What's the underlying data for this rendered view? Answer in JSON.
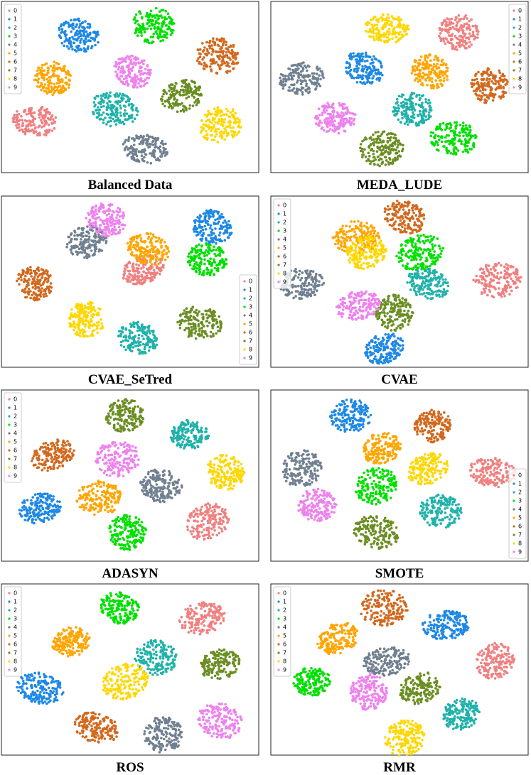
{
  "chart_data": [
    {
      "type": "scatter",
      "title": "Balanced Data",
      "legend": "upper left",
      "xlim": [
        0,
        100
      ],
      "ylim": [
        0,
        100
      ],
      "series": [
        {
          "name": "0",
          "color": "#f08080",
          "x": [
            13
          ],
          "values": [
            30
          ]
        },
        {
          "name": "1",
          "color": "#1e88e5",
          "x": [
            30
          ],
          "values": [
            80
          ]
        },
        {
          "name": "2",
          "color": "#20b2aa",
          "x": [
            44
          ],
          "values": [
            37
          ]
        },
        {
          "name": "3",
          "color": "#00e000",
          "x": [
            59
          ],
          "values": [
            86
          ]
        },
        {
          "name": "4",
          "color": "#708090",
          "x": [
            56
          ],
          "values": [
            14
          ]
        },
        {
          "name": "5",
          "color": "#ffa500",
          "x": [
            20
          ],
          "values": [
            55
          ]
        },
        {
          "name": "6",
          "color": "#d2691e",
          "x": [
            84
          ],
          "values": [
            68
          ]
        },
        {
          "name": "7",
          "color": "#6b8e23",
          "x": [
            70
          ],
          "values": [
            45
          ]
        },
        {
          "name": "8",
          "color": "#ffd700",
          "x": [
            85
          ],
          "values": [
            28
          ]
        },
        {
          "name": "9",
          "color": "#ee82ee",
          "x": [
            51
          ],
          "values": [
            59
          ]
        }
      ]
    },
    {
      "type": "scatter",
      "title": "MEDA_LUDE",
      "legend": "upper right",
      "xlim": [
        0,
        100
      ],
      "ylim": [
        0,
        100
      ],
      "series": [
        {
          "name": "0",
          "color": "#f08080",
          "x": [
            73
          ],
          "values": [
            82
          ]
        },
        {
          "name": "1",
          "color": "#1e88e5",
          "x": [
            36
          ],
          "values": [
            61
          ]
        },
        {
          "name": "2",
          "color": "#20b2aa",
          "x": [
            55
          ],
          "values": [
            37
          ]
        },
        {
          "name": "3",
          "color": "#00e000",
          "x": [
            71
          ],
          "values": [
            20
          ]
        },
        {
          "name": "4",
          "color": "#708090",
          "x": [
            12
          ],
          "values": [
            55
          ]
        },
        {
          "name": "5",
          "color": "#ffa500",
          "x": [
            62
          ],
          "values": [
            59
          ]
        },
        {
          "name": "6",
          "color": "#d2691e",
          "x": [
            85
          ],
          "values": [
            51
          ]
        },
        {
          "name": "7",
          "color": "#6b8e23",
          "x": [
            43
          ],
          "values": [
            14
          ]
        },
        {
          "name": "8",
          "color": "#ffd700",
          "x": [
            45
          ],
          "values": [
            84
          ]
        },
        {
          "name": "9",
          "color": "#ee82ee",
          "x": [
            25
          ],
          "values": [
            32
          ]
        }
      ]
    },
    {
      "type": "scatter",
      "title": "CVAE_SeTred",
      "legend": "lower right",
      "xlim": [
        0,
        100
      ],
      "ylim": [
        0,
        100
      ],
      "series": [
        {
          "name": "0",
          "color": "#f08080",
          "x": [
            55
          ],
          "values": [
            57
          ]
        },
        {
          "name": "1",
          "color": "#1e88e5",
          "x": [
            82
          ],
          "values": [
            82
          ]
        },
        {
          "name": "2",
          "color": "#20b2aa",
          "x": [
            53
          ],
          "values": [
            17
          ]
        },
        {
          "name": "3",
          "color": "#00e000",
          "x": [
            80
          ],
          "values": [
            63
          ]
        },
        {
          "name": "4",
          "color": "#708090",
          "x": [
            33
          ],
          "values": [
            73
          ]
        },
        {
          "name": "5",
          "color": "#ffa500",
          "x": [
            57
          ],
          "values": [
            69
          ]
        },
        {
          "name": "6",
          "color": "#d2691e",
          "x": [
            13
          ],
          "values": [
            49
          ]
        },
        {
          "name": "7",
          "color": "#6b8e23",
          "x": [
            77
          ],
          "values": [
            26
          ]
        },
        {
          "name": "8",
          "color": "#ffd700",
          "x": [
            33
          ],
          "values": [
            28
          ]
        },
        {
          "name": "9",
          "color": "#ee82ee",
          "x": [
            41
          ],
          "values": [
            86
          ]
        }
      ]
    },
    {
      "type": "scatter",
      "title": "CVAE",
      "legend": "upper left",
      "xlim": [
        0,
        100
      ],
      "ylim": [
        0,
        100
      ],
      "series": [
        {
          "name": "0",
          "color": "#f08080",
          "x": [
            88
          ],
          "values": [
            51
          ]
        },
        {
          "name": "1",
          "color": "#1e88e5",
          "x": [
            44
          ],
          "values": [
            11
          ]
        },
        {
          "name": "2",
          "color": "#20b2aa",
          "x": [
            61
          ],
          "values": [
            49
          ]
        },
        {
          "name": "3",
          "color": "#00e000",
          "x": [
            58
          ],
          "values": [
            67
          ]
        },
        {
          "name": "4",
          "color": "#708090",
          "x": [
            12
          ],
          "values": [
            49
          ]
        },
        {
          "name": "5",
          "color": "#ffa500",
          "x": [
            33
          ],
          "values": [
            76
          ]
        },
        {
          "name": "6",
          "color": "#d2691e",
          "x": [
            52
          ],
          "values": [
            88
          ]
        },
        {
          "name": "7",
          "color": "#6b8e23",
          "x": [
            48
          ],
          "values": [
            32
          ]
        },
        {
          "name": "8",
          "color": "#ffd700",
          "x": [
            37
          ],
          "values": [
            67
          ]
        },
        {
          "name": "9",
          "color": "#ee82ee",
          "x": [
            34
          ],
          "values": [
            36
          ]
        }
      ]
    },
    {
      "type": "scatter",
      "title": "ADASYN",
      "legend": "upper left",
      "xlim": [
        0,
        100
      ],
      "ylim": [
        0,
        100
      ],
      "series": [
        {
          "name": "0",
          "color": "#f08080",
          "x": [
            80
          ],
          "values": [
            23
          ]
        },
        {
          "name": "1",
          "color": "#1e88e5",
          "x": [
            15
          ],
          "values": [
            31
          ]
        },
        {
          "name": "2",
          "color": "#20b2aa",
          "x": [
            73
          ],
          "values": [
            74
          ]
        },
        {
          "name": "3",
          "color": "#00e000",
          "x": [
            49
          ],
          "values": [
            17
          ]
        },
        {
          "name": "4",
          "color": "#708090",
          "x": [
            62
          ],
          "values": [
            44
          ]
        },
        {
          "name": "5",
          "color": "#ffa500",
          "x": [
            38
          ],
          "values": [
            37
          ]
        },
        {
          "name": "6",
          "color": "#d2691e",
          "x": [
            20
          ],
          "values": [
            62
          ]
        },
        {
          "name": "7",
          "color": "#6b8e23",
          "x": [
            48
          ],
          "values": [
            85
          ]
        },
        {
          "name": "8",
          "color": "#ffd700",
          "x": [
            87
          ],
          "values": [
            52
          ]
        },
        {
          "name": "9",
          "color": "#ee82ee",
          "x": [
            45
          ],
          "values": [
            60
          ]
        }
      ]
    },
    {
      "type": "scatter",
      "title": "SMOTE",
      "legend": "lower right",
      "xlim": [
        0,
        100
      ],
      "ylim": [
        0,
        100
      ],
      "series": [
        {
          "name": "0",
          "color": "#f08080",
          "x": [
            86
          ],
          "values": [
            52
          ]
        },
        {
          "name": "1",
          "color": "#1e88e5",
          "x": [
            31
          ],
          "values": [
            85
          ]
        },
        {
          "name": "2",
          "color": "#20b2aa",
          "x": [
            66
          ],
          "values": [
            29
          ]
        },
        {
          "name": "3",
          "color": "#00e000",
          "x": [
            41
          ],
          "values": [
            44
          ]
        },
        {
          "name": "4",
          "color": "#708090",
          "x": [
            12
          ],
          "values": [
            54
          ]
        },
        {
          "name": "5",
          "color": "#ffa500",
          "x": [
            43
          ],
          "values": [
            66
          ]
        },
        {
          "name": "6",
          "color": "#d2691e",
          "x": [
            63
          ],
          "values": [
            79
          ]
        },
        {
          "name": "7",
          "color": "#6b8e23",
          "x": [
            41
          ],
          "values": [
            17
          ]
        },
        {
          "name": "8",
          "color": "#ffd700",
          "x": [
            61
          ],
          "values": [
            54
          ]
        },
        {
          "name": "9",
          "color": "#ee82ee",
          "x": [
            18
          ],
          "values": [
            33
          ]
        }
      ]
    },
    {
      "type": "scatter",
      "title": "ROS",
      "legend": "upper left",
      "xlim": [
        0,
        100
      ],
      "ylim": [
        0,
        100
      ],
      "series": [
        {
          "name": "0",
          "color": "#f08080",
          "x": [
            78
          ],
          "values": [
            80
          ]
        },
        {
          "name": "1",
          "color": "#1e88e5",
          "x": [
            15
          ],
          "values": [
            39
          ]
        },
        {
          "name": "2",
          "color": "#20b2aa",
          "x": [
            60
          ],
          "values": [
            57
          ]
        },
        {
          "name": "3",
          "color": "#00e000",
          "x": [
            46
          ],
          "values": [
            86
          ]
        },
        {
          "name": "4",
          "color": "#708090",
          "x": [
            63
          ],
          "values": [
            12
          ]
        },
        {
          "name": "5",
          "color": "#ffa500",
          "x": [
            27
          ],
          "values": [
            66
          ]
        },
        {
          "name": "6",
          "color": "#d2691e",
          "x": [
            37
          ],
          "values": [
            16
          ]
        },
        {
          "name": "7",
          "color": "#6b8e23",
          "x": [
            85
          ],
          "values": [
            53
          ]
        },
        {
          "name": "8",
          "color": "#ffd700",
          "x": [
            48
          ],
          "values": [
            43
          ]
        },
        {
          "name": "9",
          "color": "#ee82ee",
          "x": [
            85
          ],
          "values": [
            20
          ]
        }
      ]
    },
    {
      "type": "scatter",
      "title": "RMR",
      "legend": "upper left",
      "xlim": [
        0,
        100
      ],
      "ylim": [
        0,
        100
      ],
      "series": [
        {
          "name": "0",
          "color": "#f08080",
          "x": [
            87
          ],
          "values": [
            55
          ]
        },
        {
          "name": "1",
          "color": "#1e88e5",
          "x": [
            68
          ],
          "values": [
            76
          ]
        },
        {
          "name": "2",
          "color": "#20b2aa",
          "x": [
            74
          ],
          "values": [
            24
          ]
        },
        {
          "name": "3",
          "color": "#00e000",
          "x": [
            16
          ],
          "values": [
            43
          ]
        },
        {
          "name": "4",
          "color": "#708090",
          "x": [
            45
          ],
          "values": [
            55
          ]
        },
        {
          "name": "5",
          "color": "#ffa500",
          "x": [
            26
          ],
          "values": [
            68
          ]
        },
        {
          "name": "6",
          "color": "#d2691e",
          "x": [
            44
          ],
          "values": [
            86
          ]
        },
        {
          "name": "7",
          "color": "#6b8e23",
          "x": [
            58
          ],
          "values": [
            39
          ]
        },
        {
          "name": "8",
          "color": "#ffd700",
          "x": [
            52
          ],
          "values": [
            10
          ]
        },
        {
          "name": "9",
          "color": "#ee82ee",
          "x": [
            38
          ],
          "values": [
            37
          ]
        }
      ]
    }
  ]
}
